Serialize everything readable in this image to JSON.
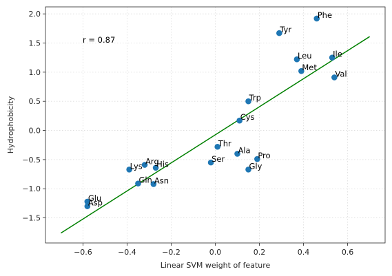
{
  "chart_data": {
    "type": "scatter",
    "xlabel": "Linear SVM weight of feature",
    "ylabel": "Hydrophobicity",
    "xlim": [
      -0.77,
      0.77
    ],
    "ylim": [
      -1.93,
      2.12
    ],
    "xticks": [
      -0.6,
      -0.4,
      -0.2,
      0.0,
      0.2,
      0.4,
      0.6
    ],
    "xtick_labels": [
      "−0.6",
      "−0.4",
      "−0.2",
      "0.0",
      "0.2",
      "0.4",
      "0.6"
    ],
    "yticks": [
      -1.5,
      -1.0,
      -0.5,
      0.0,
      0.5,
      1.0,
      1.5,
      2.0
    ],
    "ytick_labels": [
      "−1.5",
      "−1.0",
      "−0.5",
      "0.0",
      "0.5",
      "1.0",
      "1.5",
      "2.0"
    ],
    "grid": true,
    "annotation": "r = 0.87",
    "colors": {
      "points": "#1f77b4",
      "fit_line": "#008000",
      "grid": "#dcdcdc"
    },
    "points": [
      {
        "label": "Phe",
        "x": 0.46,
        "y": 1.92
      },
      {
        "label": "Tyr",
        "x": 0.29,
        "y": 1.67
      },
      {
        "label": "Leu",
        "x": 0.37,
        "y": 1.22
      },
      {
        "label": "Ile",
        "x": 0.53,
        "y": 1.25
      },
      {
        "label": "Met",
        "x": 0.39,
        "y": 1.02
      },
      {
        "label": "Val",
        "x": 0.54,
        "y": 0.91
      },
      {
        "label": "Trp",
        "x": 0.15,
        "y": 0.5
      },
      {
        "label": "Cys",
        "x": 0.11,
        "y": 0.17
      },
      {
        "label": "Thr",
        "x": 0.01,
        "y": -0.28
      },
      {
        "label": "Ala",
        "x": 0.1,
        "y": -0.4
      },
      {
        "label": "Pro",
        "x": 0.19,
        "y": -0.49
      },
      {
        "label": "Ser",
        "x": -0.02,
        "y": -0.55
      },
      {
        "label": "Gly",
        "x": 0.15,
        "y": -0.67
      },
      {
        "label": "Arg",
        "x": -0.32,
        "y": -0.59
      },
      {
        "label": "His",
        "x": -0.27,
        "y": -0.64
      },
      {
        "label": "Lys",
        "x": -0.39,
        "y": -0.67
      },
      {
        "label": "Gln",
        "x": -0.35,
        "y": -0.91
      },
      {
        "label": "Asn",
        "x": -0.28,
        "y": -0.92
      },
      {
        "label": "Glu",
        "x": -0.58,
        "y": -1.22
      },
      {
        "label": "Asp",
        "x": -0.58,
        "y": -1.3
      }
    ],
    "fit_line": {
      "x": [
        -0.7,
        0.7
      ],
      "y": [
        -1.76,
        1.61
      ]
    }
  }
}
